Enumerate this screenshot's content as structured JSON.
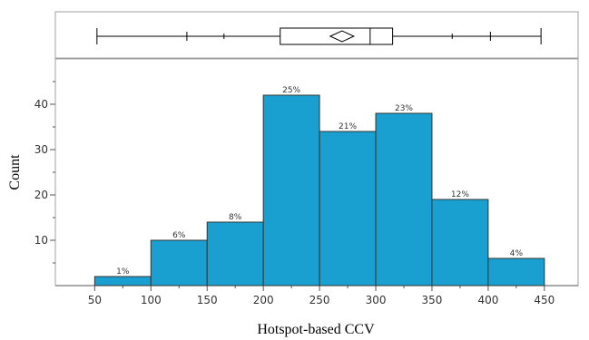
{
  "chart_data": {
    "type": "bar",
    "title": "",
    "xlabel": "Hotspot-based CCV",
    "ylabel": "Count",
    "bins": [
      {
        "from": 50,
        "to": 100,
        "count": 2,
        "label": "1%"
      },
      {
        "from": 100,
        "to": 150,
        "count": 10,
        "label": "6%"
      },
      {
        "from": 150,
        "to": 200,
        "count": 14,
        "label": "8%"
      },
      {
        "from": 200,
        "to": 250,
        "count": 42,
        "label": "25%"
      },
      {
        "from": 250,
        "to": 300,
        "count": 34,
        "label": "21%"
      },
      {
        "from": 300,
        "to": 350,
        "count": 38,
        "label": "23%"
      },
      {
        "from": 350,
        "to": 400,
        "count": 19,
        "label": "12%"
      },
      {
        "from": 400,
        "to": 450,
        "count": 6,
        "label": "4%"
      }
    ],
    "x_ticks": [
      "50",
      "100",
      "150",
      "200",
      "250",
      "300",
      "350",
      "400",
      "450"
    ],
    "y_ticks": [
      "10",
      "20",
      "30",
      "40"
    ],
    "xlim": [
      15,
      480
    ],
    "ylim": [
      0,
      50
    ],
    "bar_color": "#1aa0d0",
    "boxplot": {
      "whisker_min": 52,
      "q1": 215,
      "median": 295,
      "q3": 315,
      "whisker_max": 447,
      "mean": 270,
      "quantile_marks": [
        132,
        165,
        368,
        402
      ]
    }
  }
}
